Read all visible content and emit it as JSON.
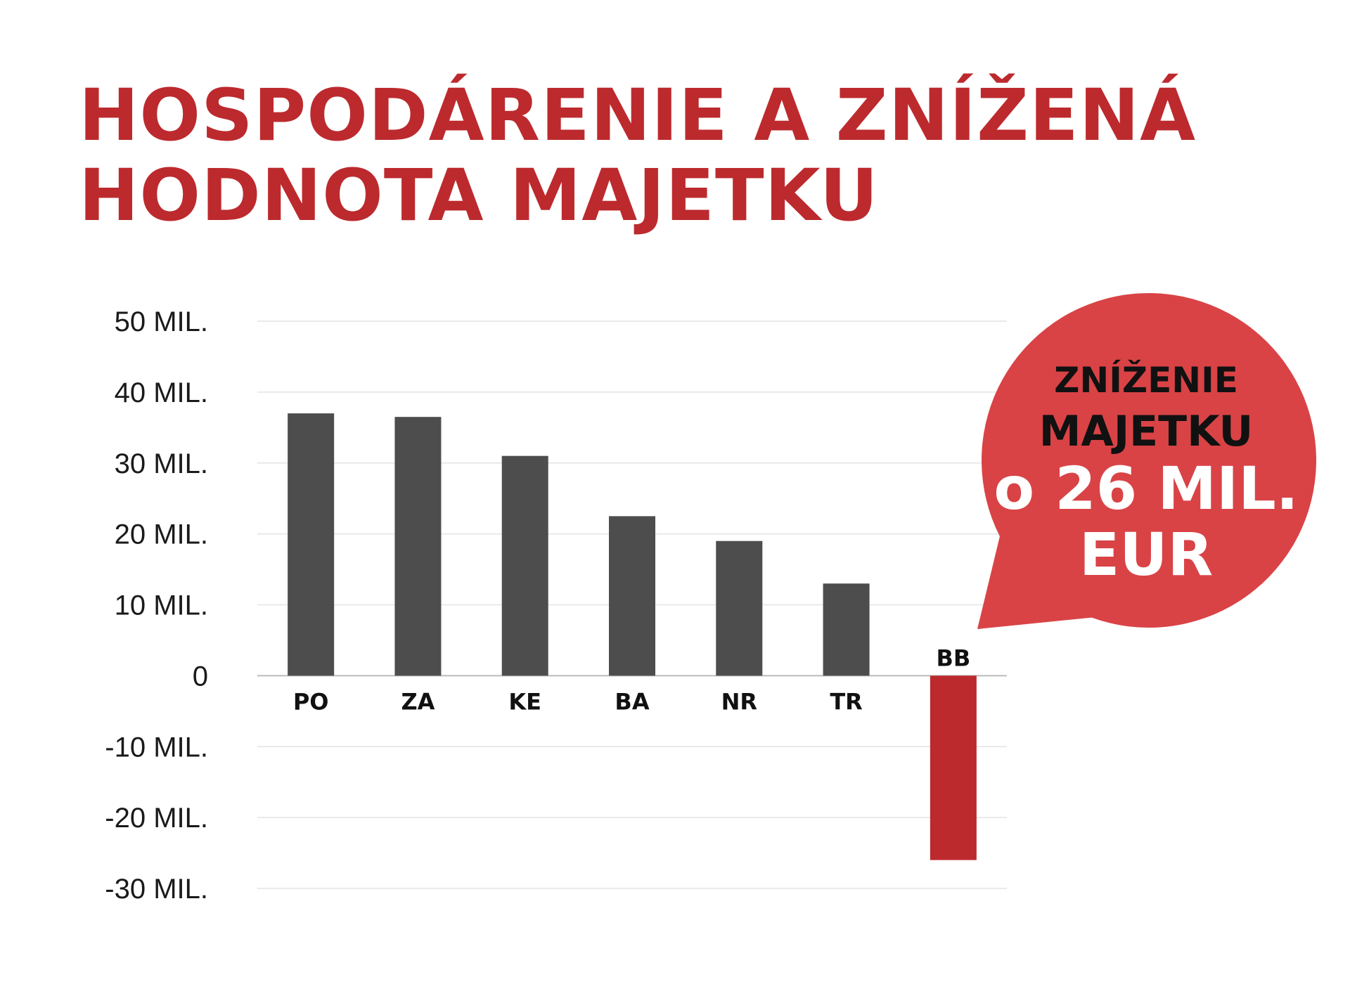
{
  "title_lines": [
    "HOSPODÁRENIE A ZNÍŽENÁ",
    "HODNOTA MAJETKU"
  ],
  "chart_data": {
    "type": "bar",
    "title": "HOSPODÁRENIE A ZNÍŽENÁ HODNOTA MAJETKU",
    "categories": [
      "PO",
      "ZA",
      "KE",
      "BA",
      "NR",
      "TR",
      "BB"
    ],
    "values": [
      37,
      36.5,
      31,
      22.5,
      19,
      13,
      -26
    ],
    "unit": "mil. EUR",
    "ylim": [
      -30,
      50
    ],
    "yticks": [
      50,
      40,
      30,
      20,
      10,
      0,
      -10,
      -20,
      -30
    ],
    "ytick_labels": [
      "50 MIL.",
      "40 MIL.",
      "30 MIL.",
      "20 MIL.",
      "10 MIL.",
      "0",
      "-10 MIL.",
      "-20 MIL.",
      "-30 MIL."
    ],
    "grid": true,
    "colors": {
      "positive": "#4d4d4d",
      "negative": "#bc2a2e",
      "grid": "#e3e3e3",
      "zero_line": "#bbbbbb"
    },
    "callout": {
      "target": "BB",
      "lines": [
        "ZNÍŽENIE",
        "MAJETKU",
        "o 26 MIL.",
        "EUR"
      ],
      "color": "#d94346"
    }
  }
}
